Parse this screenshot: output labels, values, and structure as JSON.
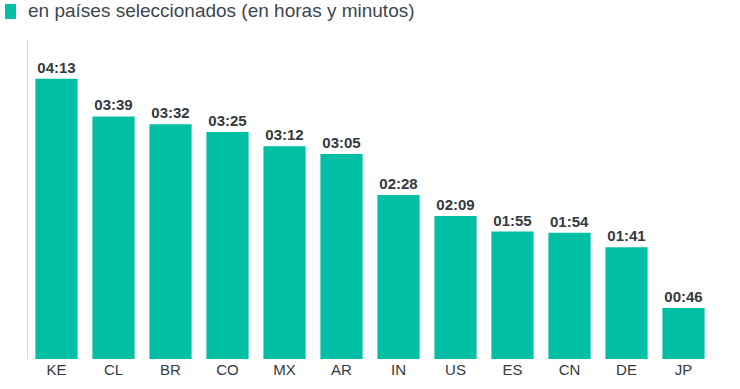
{
  "chart_data": {
    "type": "bar",
    "title": "en países seleccionados (en horas y minutos)",
    "categories": [
      "KE",
      "CL",
      "BR",
      "CO",
      "MX",
      "AR",
      "IN",
      "US",
      "ES",
      "CN",
      "DE",
      "JP"
    ],
    "values": [
      253,
      219,
      212,
      205,
      192,
      185,
      148,
      129,
      115,
      114,
      101,
      46
    ],
    "value_labels": [
      "04:13",
      "03:39",
      "03:32",
      "03:25",
      "03:12",
      "03:05",
      "02:28",
      "02:09",
      "01:55",
      "01:54",
      "01:41",
      "00:46"
    ],
    "color": "#00bfa5",
    "ylim": [
      0,
      288
    ],
    "grid": false,
    "data_labels": true,
    "tick_labels": "x"
  }
}
